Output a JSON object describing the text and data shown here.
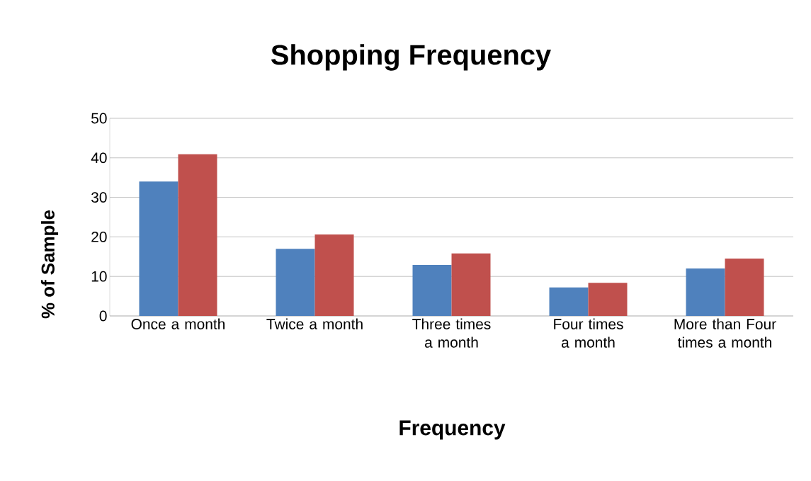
{
  "chart_data": {
    "type": "bar",
    "title": "Shopping Frequency",
    "xlabel": "Frequency",
    "ylabel": "% of Sample",
    "categories": [
      "Once a month",
      "Twice a month",
      "Three times a month",
      "Four times a month",
      "More than Four times a month"
    ],
    "series": [
      {
        "color": "#4f81bd",
        "values": [
          34,
          17,
          12.9,
          7.2,
          12
        ]
      },
      {
        "color": "#c0504d",
        "values": [
          40.9,
          20.6,
          15.8,
          8.4,
          14.5
        ]
      }
    ],
    "ylim": [
      0,
      50
    ],
    "yticks": [
      0,
      10,
      20,
      30,
      40,
      50
    ],
    "grid": "y"
  }
}
